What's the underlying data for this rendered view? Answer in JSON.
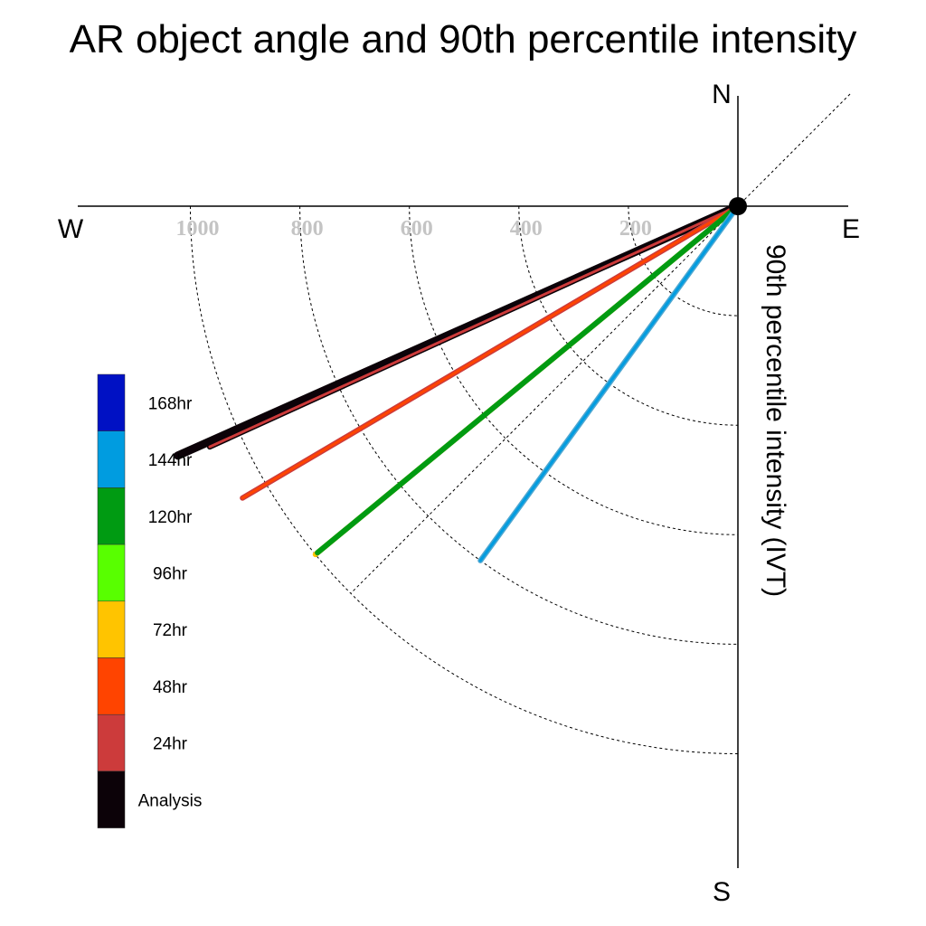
{
  "chart_data": {
    "type": "polar-vector",
    "title": "AR object angle and 90th percentile intensity",
    "radial_axis_label": "90th percentile intensity (IVT)",
    "compass": {
      "north": "N",
      "south": "S",
      "east": "E",
      "west": "W"
    },
    "rings": [
      200,
      400,
      600,
      800,
      1000
    ],
    "tick_labels": [
      "200",
      "400",
      "600",
      "800",
      "1000"
    ],
    "rmax": 1200,
    "grid": true,
    "legend_position": "left",
    "legend": [
      {
        "label": "168hr",
        "color": "#0011c4"
      },
      {
        "label": "144hr",
        "color": "#009ce0"
      },
      {
        "label": "120hr",
        "color": "#009b12"
      },
      {
        "label": "96hr",
        "color": "#58ff00"
      },
      {
        "label": "72hr",
        "color": "#ffc400"
      },
      {
        "label": "48hr",
        "color": "#ff4400"
      },
      {
        "label": "24hr",
        "color": "#cc3b3b"
      },
      {
        "label": "Analysis",
        "color": "#0c0208"
      }
    ],
    "series": [
      {
        "name": "Analysis",
        "color": "#0c0208",
        "angle_deg": 246,
        "intensity": 1120,
        "outline": "#0c0208"
      },
      {
        "name": "24hr",
        "color": "#cc3b3b",
        "angle_deg": 245.5,
        "intensity": 1060,
        "outline": "#0c0208"
      },
      {
        "name": "48hr",
        "color": "#ff4400",
        "angle_deg": 239.5,
        "intensity": 1050,
        "outline": "#cc3b3b"
      },
      {
        "name": "72hr",
        "color": "#ffc400",
        "angle_deg": 230.5,
        "intensity": 1000,
        "outline": "#ffc400"
      },
      {
        "name": "120hr",
        "color": "#009b12",
        "angle_deg": 230.5,
        "intensity": 995,
        "outline": "#009b12"
      },
      {
        "name": "144hr",
        "color": "#009ce0",
        "angle_deg": 216,
        "intensity": 800,
        "outline": "#4fa7d1"
      }
    ]
  }
}
